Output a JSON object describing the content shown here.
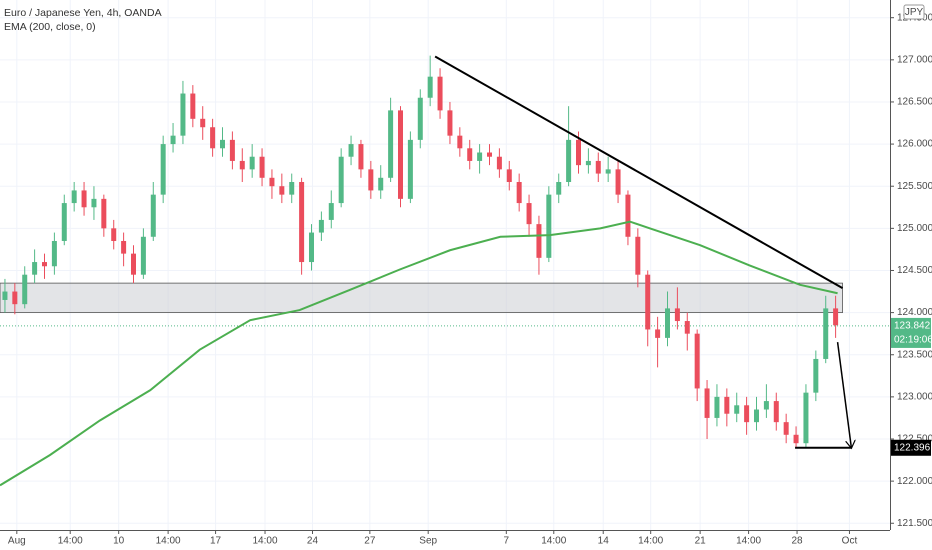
{
  "chart_data": {
    "type": "candlestick",
    "title": "Euro / Japanese Yen, 4h, OANDA",
    "indicator": "EMA (200, close, 0)",
    "currency": "JPY",
    "xlim": [
      0,
      90
    ],
    "ylim": [
      121.42,
      127.71
    ],
    "grid": true,
    "up_color": "#53b987",
    "down_color": "#eb4d5c",
    "xticks": [
      {
        "value": 1.7,
        "label": "Aug"
      },
      {
        "value": 7.1,
        "label": "14:00"
      },
      {
        "value": 12.0,
        "label": "10"
      },
      {
        "value": 17.0,
        "label": "14:00"
      },
      {
        "value": 21.8,
        "label": "17"
      },
      {
        "value": 26.8,
        "label": "14:00"
      },
      {
        "value": 31.6,
        "label": "24"
      },
      {
        "value": 37.4,
        "label": "27"
      },
      {
        "value": 43.3,
        "label": "Sep"
      },
      {
        "value": 51.2,
        "label": "7"
      },
      {
        "value": 56.0,
        "label": "14:00"
      },
      {
        "value": 61.0,
        "label": "14"
      },
      {
        "value": 65.8,
        "label": "14:00"
      },
      {
        "value": 70.8,
        "label": "21"
      },
      {
        "value": 75.7,
        "label": "14:00"
      },
      {
        "value": 80.6,
        "label": "28"
      },
      {
        "value": 85.9,
        "label": "Oct"
      }
    ],
    "yticks": [
      {
        "value": 121.5,
        "label": "121.500"
      },
      {
        "value": 122.0,
        "label": "122.000"
      },
      {
        "value": 122.5,
        "label": "122.500"
      },
      {
        "value": 123.0,
        "label": "123.000"
      },
      {
        "value": 123.5,
        "label": "123.500"
      },
      {
        "value": 124.0,
        "label": "124.000"
      },
      {
        "value": 124.5,
        "label": "124.500"
      },
      {
        "value": 125.0,
        "label": "125.000"
      },
      {
        "value": 125.5,
        "label": "125.500"
      },
      {
        "value": 126.0,
        "label": "126.000"
      },
      {
        "value": 126.5,
        "label": "126.500"
      },
      {
        "value": 127.0,
        "label": "127.000"
      },
      {
        "value": 127.5,
        "label": "127.500"
      }
    ],
    "x": [
      0.5,
      1.5,
      2.5,
      3.5,
      4.5,
      5.5,
      6.5,
      7.5,
      8.5,
      9.5,
      10.5,
      11.5,
      12.5,
      13.5,
      14.5,
      15.5,
      16.5,
      17.5,
      18.5,
      19.5,
      20.5,
      21.5,
      22.5,
      23.5,
      24.5,
      25.5,
      26.5,
      27.5,
      28.5,
      29.5,
      30.5,
      31.5,
      32.5,
      33.5,
      34.5,
      35.5,
      36.5,
      37.5,
      38.5,
      39.5,
      40.5,
      41.5,
      42.5,
      43.5,
      44.5,
      45.5,
      46.5,
      47.5,
      48.5,
      49.5,
      50.5,
      51.5,
      52.5,
      53.5,
      54.5,
      55.5,
      56.5,
      57.5,
      58.5,
      59.5,
      60.5,
      61.5,
      62.5,
      63.5,
      64.5,
      65.5,
      66.5,
      67.5,
      68.5,
      69.5,
      70.5,
      71.5,
      72.5,
      73.5,
      74.5,
      75.5,
      76.5,
      77.5,
      78.5,
      79.5,
      80.5,
      81.5,
      82.5,
      83.5,
      84.5
    ],
    "open": [
      124.15,
      124.25,
      124.1,
      124.45,
      124.6,
      124.55,
      124.85,
      125.3,
      125.45,
      125.25,
      125.35,
      125.0,
      124.85,
      124.7,
      124.45,
      124.9,
      125.4,
      126.0,
      126.1,
      126.6,
      126.3,
      126.2,
      125.95,
      126.05,
      125.8,
      125.7,
      125.85,
      125.6,
      125.5,
      125.4,
      125.55,
      124.6,
      124.95,
      125.1,
      125.3,
      125.85,
      126.0,
      125.7,
      125.45,
      125.6,
      126.4,
      125.35,
      126.05,
      126.55,
      126.8,
      126.4,
      126.1,
      125.95,
      125.8,
      125.9,
      125.85,
      125.7,
      125.55,
      125.3,
      125.05,
      124.65,
      125.4,
      125.55,
      126.05,
      125.75,
      125.8,
      125.65,
      125.7,
      125.4,
      124.9,
      124.45,
      123.8,
      123.7,
      124.05,
      123.9,
      123.75,
      123.1,
      122.75,
      123.0,
      122.8,
      122.9,
      122.7,
      122.85,
      122.95,
      122.7,
      122.55,
      122.45,
      123.05,
      123.45,
      124.05
    ],
    "high": [
      124.4,
      124.35,
      124.55,
      124.75,
      124.7,
      124.95,
      125.4,
      125.55,
      125.55,
      125.5,
      125.4,
      125.1,
      124.95,
      124.8,
      125.0,
      125.55,
      126.1,
      126.25,
      126.75,
      126.7,
      126.45,
      126.3,
      126.2,
      126.15,
      125.95,
      126.0,
      125.95,
      125.7,
      125.65,
      125.65,
      125.6,
      125.05,
      125.2,
      125.45,
      125.95,
      126.1,
      126.05,
      125.8,
      125.75,
      126.55,
      126.45,
      126.15,
      126.65,
      127.05,
      126.9,
      126.5,
      126.2,
      126.05,
      126.0,
      126.0,
      125.95,
      125.8,
      125.65,
      125.4,
      125.15,
      125.5,
      125.65,
      126.45,
      126.15,
      125.95,
      125.9,
      125.85,
      125.8,
      125.45,
      125.0,
      124.5,
      123.95,
      124.25,
      124.3,
      124.0,
      123.8,
      123.2,
      123.15,
      123.1,
      123.05,
      123.0,
      123.0,
      123.15,
      123.05,
      122.8,
      122.65,
      123.15,
      123.55,
      124.2,
      124.2
    ],
    "low": [
      124.0,
      123.98,
      124.05,
      124.35,
      124.4,
      124.45,
      124.8,
      125.2,
      125.15,
      125.1,
      124.9,
      124.75,
      124.55,
      124.35,
      124.4,
      124.85,
      125.3,
      125.9,
      126.0,
      126.2,
      126.05,
      125.85,
      125.85,
      125.7,
      125.55,
      125.6,
      125.5,
      125.35,
      125.3,
      125.3,
      124.45,
      124.5,
      124.85,
      125.0,
      125.25,
      125.75,
      125.6,
      125.35,
      125.35,
      125.55,
      125.25,
      125.3,
      125.95,
      126.45,
      126.3,
      126.0,
      125.85,
      125.7,
      125.65,
      125.75,
      125.6,
      125.45,
      125.2,
      124.9,
      124.45,
      124.6,
      125.3,
      125.5,
      125.65,
      125.65,
      125.55,
      125.55,
      125.3,
      124.8,
      124.3,
      123.6,
      123.35,
      123.6,
      123.8,
      123.55,
      122.95,
      122.5,
      122.65,
      122.65,
      122.7,
      122.55,
      122.6,
      122.75,
      122.6,
      122.45,
      122.4,
      122.4,
      122.95,
      123.4,
      123.7
    ],
    "close": [
      124.25,
      124.1,
      124.45,
      124.6,
      124.55,
      124.85,
      125.3,
      125.45,
      125.25,
      125.35,
      125.0,
      124.85,
      124.7,
      124.45,
      124.9,
      125.4,
      126.0,
      126.1,
      126.6,
      126.3,
      126.2,
      125.95,
      126.05,
      125.8,
      125.7,
      125.85,
      125.6,
      125.5,
      125.4,
      125.55,
      124.6,
      124.95,
      125.1,
      125.3,
      125.85,
      126.0,
      125.7,
      125.45,
      125.6,
      126.4,
      125.35,
      126.05,
      126.55,
      126.8,
      126.4,
      126.1,
      125.95,
      125.8,
      125.9,
      125.85,
      125.7,
      125.55,
      125.3,
      125.05,
      124.65,
      125.4,
      125.55,
      126.05,
      125.75,
      125.8,
      125.65,
      125.7,
      125.4,
      124.9,
      124.45,
      123.8,
      123.7,
      124.05,
      123.9,
      123.75,
      123.1,
      122.75,
      123.0,
      122.8,
      122.9,
      122.7,
      122.85,
      122.95,
      122.7,
      122.55,
      122.45,
      123.05,
      123.45,
      124.05,
      123.85
    ],
    "ema": {
      "color": "#4caf50",
      "x": [
        0,
        5.06,
        10.1,
        15.2,
        20.2,
        25.3,
        30.3,
        35.4,
        40.4,
        45.5,
        50.6,
        55.6,
        60.7,
        63.7,
        65.7,
        70.8,
        75.8,
        80.9,
        84.7
      ],
      "values": [
        121.95,
        122.31,
        122.72,
        123.08,
        123.56,
        123.91,
        124.03,
        124.27,
        124.51,
        124.74,
        124.9,
        124.92,
        125.0,
        125.08,
        125.0,
        124.8,
        124.56,
        124.33,
        124.23
      ]
    },
    "zone": {
      "x": [
        0,
        85.2
      ],
      "y": [
        124.0,
        124.35
      ]
    },
    "trendline": {
      "x": [
        44.0,
        85.2
      ],
      "y": [
        127.04,
        124.29
      ]
    },
    "arrow": {
      "x": [
        84.7,
        86.1
      ],
      "y": [
        123.65,
        122.39
      ]
    },
    "target": {
      "x": [
        80.4,
        86.1
      ],
      "value": 122.396
    },
    "last_price": {
      "value": 123.842,
      "countdown": "02:19:06",
      "color": "#53b987"
    }
  }
}
